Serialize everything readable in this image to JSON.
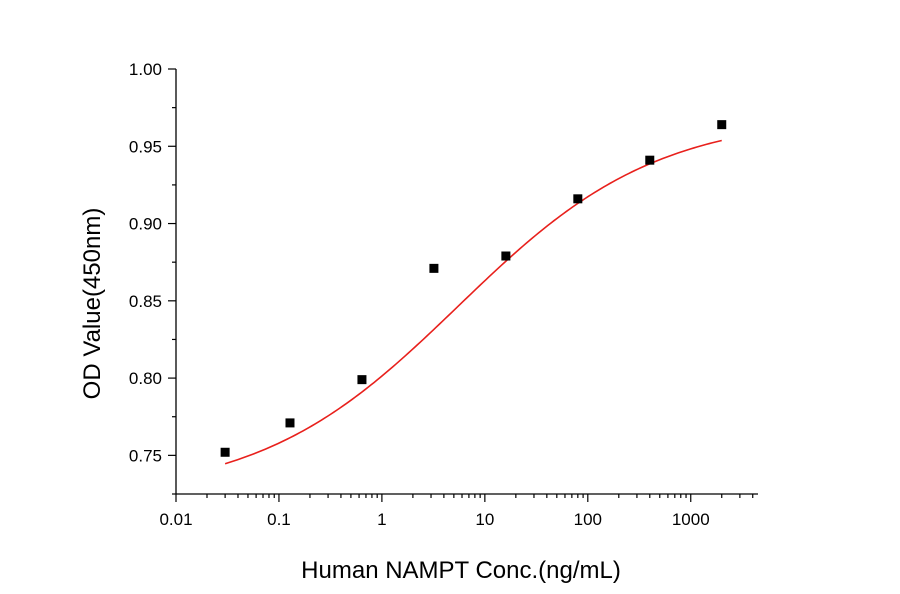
{
  "chart_data": {
    "type": "scatter",
    "title": "",
    "xlabel": "Human NAMPT Conc.(ng/mL)",
    "ylabel": "OD Value(450nm)",
    "xscale": "log",
    "xlim": [
      0.01,
      4500
    ],
    "ylim": [
      0.725,
      1.0
    ],
    "x_ticks": [
      0.01,
      0.1,
      1,
      10,
      100,
      1000
    ],
    "x_tick_labels": [
      "0.01",
      "0.1",
      "1",
      "10",
      "100",
      "1000"
    ],
    "y_ticks": [
      0.75,
      0.8,
      0.85,
      0.9,
      0.95,
      1.0
    ],
    "y_tick_labels": [
      "0.75",
      "0.80",
      "0.85",
      "0.90",
      "0.95",
      "1.00"
    ],
    "grid": false,
    "legend": "none",
    "series": [
      {
        "x": [
          0.03,
          0.128,
          0.64,
          3.2,
          16,
          80,
          400,
          2000
        ],
        "y": [
          0.752,
          0.771,
          0.799,
          0.871,
          0.879,
          0.916,
          0.941,
          0.964
        ],
        "marker": "square",
        "color": "#000000"
      }
    ],
    "fit_curve": {
      "model": "4PL",
      "color": "#e8201c",
      "x_range": [
        0.03,
        2000
      ],
      "bottom": 0.723,
      "top": 0.97,
      "ec50": 5.5,
      "hill": 0.45
    }
  }
}
